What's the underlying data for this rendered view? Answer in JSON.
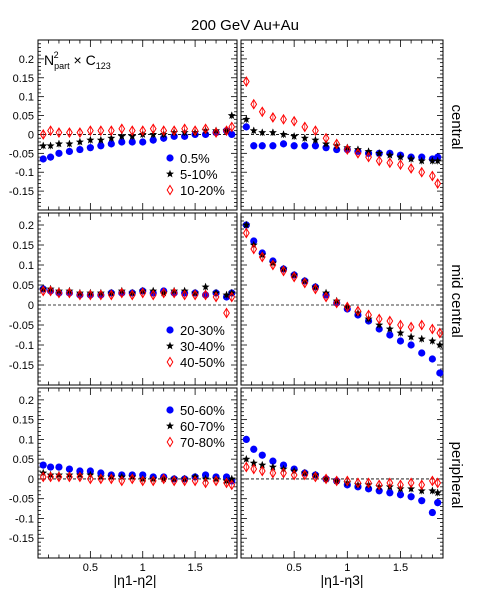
{
  "chart_data": {
    "type": "scatter",
    "title": "200 GeV Au+Au",
    "annotation": "N_part^2 × C_123",
    "xlabel_left": "|η1-η2|",
    "xlabel_right": "|η1-η3|",
    "x_ticks": [
      "0.5",
      "1",
      "1.5"
    ],
    "xlim": [
      0,
      1.9
    ],
    "ylim_top": [
      -0.2,
      0.25
    ],
    "ylim_other": [
      -0.2,
      0.23
    ],
    "y_ticks_top": [
      "0.2",
      "0.15",
      "0.1",
      "0.05",
      "0",
      "-0.05",
      "-0.1",
      "-0.15"
    ],
    "y_ticks_other": [
      "0.2",
      "0.15",
      "0.1",
      "0.05",
      "0",
      "-0.05",
      "-0.1",
      "-0.15"
    ],
    "rows": [
      {
        "label": "central",
        "legend": [
          "0.5%",
          "5-10%",
          "10-20%"
        ],
        "left": [
          {
            "name": "0.5%",
            "marker": "circle",
            "color": "#0000ff",
            "x": [
              0.05,
              0.12,
              0.2,
              0.3,
              0.4,
              0.5,
              0.6,
              0.7,
              0.8,
              0.9,
              1.0,
              1.1,
              1.2,
              1.3,
              1.4,
              1.5,
              1.6,
              1.7,
              1.8,
              1.85
            ],
            "y": [
              -0.065,
              -0.06,
              -0.05,
              -0.045,
              -0.04,
              -0.035,
              -0.03,
              -0.025,
              -0.02,
              -0.02,
              -0.02,
              -0.015,
              -0.01,
              -0.005,
              -0.005,
              0.0,
              0.0,
              0.005,
              0.01,
              0.0
            ]
          },
          {
            "name": "5-10%",
            "marker": "star",
            "color": "#000000",
            "x": [
              0.05,
              0.12,
              0.2,
              0.3,
              0.4,
              0.5,
              0.6,
              0.7,
              0.8,
              0.9,
              1.0,
              1.1,
              1.2,
              1.3,
              1.4,
              1.5,
              1.6,
              1.7,
              1.8,
              1.85
            ],
            "y": [
              -0.03,
              -0.03,
              -0.025,
              -0.025,
              -0.02,
              -0.015,
              -0.015,
              -0.01,
              -0.005,
              -0.005,
              0.0,
              0.0,
              0.0,
              0.005,
              0.005,
              0.005,
              0.01,
              0.01,
              0.01,
              0.05
            ]
          },
          {
            "name": "10-20%",
            "marker": "diamond",
            "color": "#ff0000",
            "x": [
              0.05,
              0.12,
              0.2,
              0.3,
              0.4,
              0.5,
              0.6,
              0.7,
              0.8,
              0.9,
              1.0,
              1.1,
              1.2,
              1.3,
              1.4,
              1.5,
              1.6,
              1.7,
              1.8,
              1.85
            ],
            "y": [
              0.0,
              0.01,
              0.005,
              0.005,
              0.005,
              0.01,
              0.01,
              0.01,
              0.015,
              0.01,
              0.01,
              0.015,
              0.01,
              0.01,
              0.015,
              0.01,
              0.015,
              0.005,
              0.01,
              0.02
            ]
          }
        ],
        "right": [
          {
            "name": "0.5%",
            "marker": "circle",
            "color": "#0000ff",
            "x": [
              0.05,
              0.12,
              0.2,
              0.3,
              0.4,
              0.5,
              0.6,
              0.7,
              0.8,
              0.9,
              1.0,
              1.1,
              1.2,
              1.3,
              1.4,
              1.5,
              1.6,
              1.7,
              1.8,
              1.85
            ],
            "y": [
              0.02,
              -0.03,
              -0.03,
              -0.03,
              -0.025,
              -0.03,
              -0.03,
              -0.03,
              -0.035,
              -0.04,
              -0.04,
              -0.045,
              -0.05,
              -0.05,
              -0.05,
              -0.055,
              -0.06,
              -0.06,
              -0.065,
              -0.06
            ]
          },
          {
            "name": "5-10%",
            "marker": "star",
            "color": "#000000",
            "x": [
              0.05,
              0.12,
              0.2,
              0.3,
              0.4,
              0.5,
              0.6,
              0.7,
              0.8,
              0.9,
              1.0,
              1.1,
              1.2,
              1.3,
              1.4,
              1.5,
              1.6,
              1.7,
              1.8,
              1.85
            ],
            "y": [
              0.04,
              0.01,
              0.005,
              0.005,
              0.0,
              -0.005,
              -0.01,
              -0.015,
              -0.025,
              -0.03,
              -0.035,
              -0.04,
              -0.045,
              -0.05,
              -0.055,
              -0.06,
              -0.065,
              -0.07,
              -0.07,
              -0.07
            ]
          },
          {
            "name": "10-20%",
            "marker": "diamond",
            "color": "#ff0000",
            "x": [
              0.05,
              0.12,
              0.2,
              0.3,
              0.4,
              0.5,
              0.6,
              0.7,
              0.8,
              0.9,
              1.0,
              1.1,
              1.2,
              1.3,
              1.4,
              1.5,
              1.6,
              1.7,
              1.8,
              1.85
            ],
            "y": [
              0.14,
              0.08,
              0.06,
              0.045,
              0.04,
              0.035,
              0.02,
              0.01,
              -0.01,
              -0.025,
              -0.04,
              -0.05,
              -0.06,
              -0.07,
              -0.075,
              -0.08,
              -0.09,
              -0.1,
              -0.11,
              -0.13
            ]
          }
        ]
      },
      {
        "label": "mid central",
        "legend": [
          "20-30%",
          "30-40%",
          "40-50%"
        ],
        "left": [
          {
            "name": "20-30%",
            "marker": "circle",
            "color": "#0000ff",
            "x": [
              0.05,
              0.12,
              0.2,
              0.3,
              0.4,
              0.5,
              0.6,
              0.7,
              0.8,
              0.9,
              1.0,
              1.1,
              1.2,
              1.3,
              1.4,
              1.5,
              1.6,
              1.7,
              1.8,
              1.85
            ],
            "y": [
              0.04,
              0.035,
              0.03,
              0.03,
              0.025,
              0.025,
              0.025,
              0.03,
              0.03,
              0.03,
              0.035,
              0.03,
              0.035,
              0.03,
              0.03,
              0.03,
              0.025,
              0.03,
              0.02,
              0.03
            ]
          },
          {
            "name": "30-40%",
            "marker": "star",
            "color": "#000000",
            "x": [
              0.05,
              0.12,
              0.2,
              0.3,
              0.4,
              0.5,
              0.6,
              0.7,
              0.8,
              0.9,
              1.0,
              1.1,
              1.2,
              1.3,
              1.4,
              1.5,
              1.6,
              1.7,
              1.8,
              1.85
            ],
            "y": [
              0.04,
              0.04,
              0.035,
              0.035,
              0.03,
              0.03,
              0.03,
              0.03,
              0.035,
              0.03,
              0.035,
              0.035,
              0.03,
              0.035,
              0.035,
              0.03,
              0.045,
              0.03,
              0.025,
              0.03
            ]
          },
          {
            "name": "40-50%",
            "marker": "diamond",
            "color": "#ff0000",
            "x": [
              0.05,
              0.12,
              0.2,
              0.3,
              0.4,
              0.5,
              0.6,
              0.7,
              0.8,
              0.9,
              1.0,
              1.1,
              1.2,
              1.3,
              1.4,
              1.5,
              1.6,
              1.7,
              1.8,
              1.85
            ],
            "y": [
              0.035,
              0.035,
              0.03,
              0.03,
              0.025,
              0.025,
              0.025,
              0.025,
              0.03,
              0.025,
              0.03,
              0.025,
              0.03,
              0.03,
              0.025,
              0.025,
              0.025,
              0.02,
              -0.02,
              0.02
            ]
          }
        ],
        "right": [
          {
            "name": "20-30%",
            "marker": "circle",
            "color": "#0000ff",
            "x": [
              0.05,
              0.12,
              0.2,
              0.3,
              0.4,
              0.5,
              0.6,
              0.7,
              0.8,
              0.9,
              1.0,
              1.1,
              1.2,
              1.3,
              1.4,
              1.5,
              1.6,
              1.7,
              1.8,
              1.87
            ],
            "y": [
              0.2,
              0.16,
              0.13,
              0.11,
              0.09,
              0.075,
              0.06,
              0.045,
              0.025,
              0.005,
              -0.01,
              -0.025,
              -0.04,
              -0.06,
              -0.075,
              -0.09,
              -0.1,
              -0.12,
              -0.135,
              -0.17
            ]
          },
          {
            "name": "30-40%",
            "marker": "star",
            "color": "#000000",
            "x": [
              0.05,
              0.12,
              0.2,
              0.3,
              0.4,
              0.5,
              0.6,
              0.7,
              0.8,
              0.9,
              1.0,
              1.1,
              1.2,
              1.3,
              1.4,
              1.5,
              1.6,
              1.7,
              1.8,
              1.87
            ],
            "y": [
              0.2,
              0.15,
              0.125,
              0.105,
              0.09,
              0.075,
              0.06,
              0.045,
              0.03,
              0.01,
              -0.005,
              -0.02,
              -0.035,
              -0.05,
              -0.06,
              -0.07,
              -0.08,
              -0.085,
              -0.09,
              -0.1
            ]
          },
          {
            "name": "40-50%",
            "marker": "diamond",
            "color": "#ff0000",
            "x": [
              0.05,
              0.12,
              0.2,
              0.3,
              0.4,
              0.5,
              0.6,
              0.7,
              0.8,
              0.9,
              1.0,
              1.1,
              1.2,
              1.3,
              1.4,
              1.5,
              1.6,
              1.7,
              1.8,
              1.87
            ],
            "y": [
              0.18,
              0.14,
              0.12,
              0.1,
              0.085,
              0.07,
              0.055,
              0.04,
              0.02,
              0.005,
              -0.005,
              -0.015,
              -0.025,
              -0.035,
              -0.04,
              -0.05,
              -0.055,
              -0.05,
              -0.06,
              -0.07
            ]
          }
        ]
      },
      {
        "label": "peripheral",
        "legend": [
          "50-60%",
          "60-70%",
          "70-80%"
        ],
        "left": [
          {
            "name": "50-60%",
            "marker": "circle",
            "color": "#0000ff",
            "x": [
              0.05,
              0.12,
              0.2,
              0.3,
              0.4,
              0.5,
              0.6,
              0.7,
              0.8,
              0.9,
              1.0,
              1.1,
              1.2,
              1.3,
              1.4,
              1.5,
              1.6,
              1.7,
              1.8,
              1.85
            ],
            "y": [
              0.035,
              0.03,
              0.03,
              0.025,
              0.02,
              0.02,
              0.015,
              0.01,
              0.01,
              0.01,
              0.01,
              0.005,
              0.005,
              0.0,
              0.0,
              0.005,
              0.01,
              0.005,
              0.005,
              -0.005
            ]
          },
          {
            "name": "60-70%",
            "marker": "star",
            "color": "#000000",
            "x": [
              0.05,
              0.12,
              0.2,
              0.3,
              0.4,
              0.5,
              0.6,
              0.7,
              0.8,
              0.9,
              1.0,
              1.1,
              1.2,
              1.3,
              1.4,
              1.5,
              1.6,
              1.7,
              1.8,
              1.85
            ],
            "y": [
              0.015,
              0.01,
              0.01,
              0.01,
              0.01,
              0.01,
              0.005,
              0.005,
              0.005,
              0.005,
              0.0,
              0.0,
              0.0,
              0.0,
              0.0,
              0.005,
              0.0,
              0.0,
              -0.005,
              0.0
            ]
          },
          {
            "name": "70-80%",
            "marker": "diamond",
            "color": "#ff0000",
            "x": [
              0.05,
              0.12,
              0.2,
              0.3,
              0.4,
              0.5,
              0.6,
              0.7,
              0.8,
              0.9,
              1.0,
              1.1,
              1.2,
              1.3,
              1.4,
              1.5,
              1.6,
              1.7,
              1.8,
              1.85
            ],
            "y": [
              0.005,
              0.005,
              0.005,
              0.005,
              0.005,
              0.0,
              0.0,
              0.0,
              -0.005,
              0.0,
              -0.005,
              -0.005,
              0.0,
              -0.005,
              -0.005,
              -0.005,
              -0.01,
              -0.005,
              -0.01,
              -0.015
            ]
          }
        ],
        "right": [
          {
            "name": "50-60%",
            "marker": "circle",
            "color": "#0000ff",
            "x": [
              0.05,
              0.12,
              0.2,
              0.3,
              0.4,
              0.5,
              0.6,
              0.7,
              0.8,
              0.9,
              1.0,
              1.1,
              1.2,
              1.3,
              1.4,
              1.5,
              1.6,
              1.7,
              1.8,
              1.85
            ],
            "y": [
              0.1,
              0.075,
              0.06,
              0.045,
              0.035,
              0.025,
              0.015,
              0.01,
              0.0,
              -0.005,
              -0.015,
              -0.02,
              -0.025,
              -0.03,
              -0.035,
              -0.04,
              -0.045,
              -0.055,
              -0.085,
              -0.06
            ]
          },
          {
            "name": "60-70%",
            "marker": "star",
            "color": "#000000",
            "x": [
              0.05,
              0.12,
              0.2,
              0.3,
              0.4,
              0.5,
              0.6,
              0.7,
              0.8,
              0.9,
              1.0,
              1.1,
              1.2,
              1.3,
              1.4,
              1.5,
              1.6,
              1.7,
              1.8,
              1.85
            ],
            "y": [
              0.05,
              0.04,
              0.035,
              0.03,
              0.025,
              0.02,
              0.015,
              0.01,
              0.0,
              -0.005,
              -0.01,
              -0.015,
              -0.015,
              -0.02,
              -0.02,
              -0.025,
              -0.025,
              -0.03,
              -0.03,
              -0.035
            ]
          },
          {
            "name": "70-80%",
            "marker": "diamond",
            "color": "#ff0000",
            "x": [
              0.05,
              0.12,
              0.2,
              0.3,
              0.4,
              0.5,
              0.6,
              0.7,
              0.8,
              0.9,
              1.0,
              1.1,
              1.2,
              1.3,
              1.4,
              1.5,
              1.6,
              1.7,
              1.8,
              1.85
            ],
            "y": [
              0.03,
              0.025,
              0.02,
              0.015,
              0.015,
              0.01,
              0.01,
              0.005,
              0.0,
              -0.005,
              -0.005,
              -0.01,
              -0.01,
              -0.015,
              -0.01,
              -0.015,
              -0.01,
              -0.015,
              -0.005,
              -0.01
            ]
          }
        ]
      }
    ]
  }
}
